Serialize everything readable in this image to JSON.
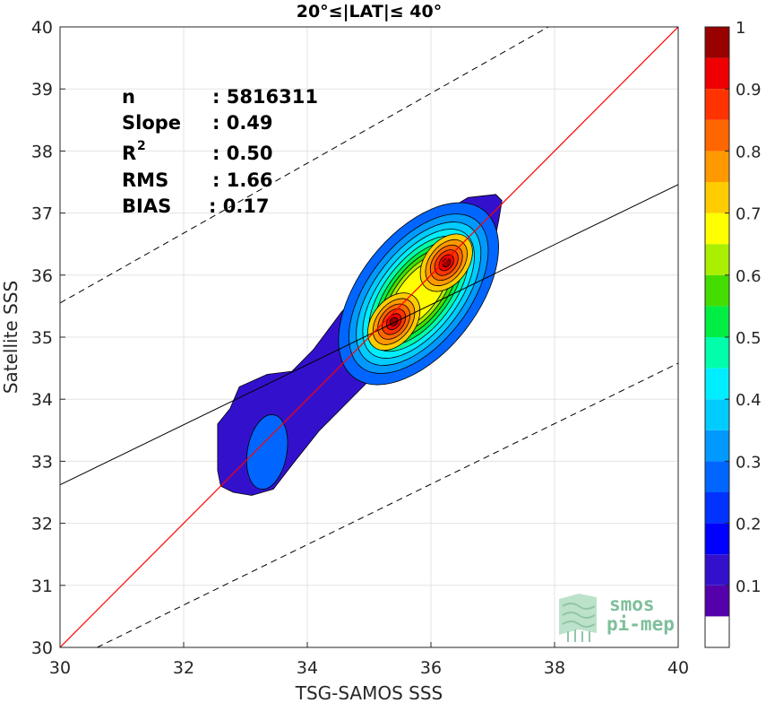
{
  "chart_data": {
    "type": "heatmap",
    "subtype": "density-contour",
    "title": "20°≤|LAT|≤ 40°",
    "xlabel": "TSG-SAMOS SSS",
    "ylabel": "Satellite SSS",
    "xlim": [
      30,
      40
    ],
    "ylim": [
      30,
      40
    ],
    "xticks": [
      "30",
      "32",
      "34",
      "36",
      "38",
      "40"
    ],
    "yticks": [
      "30",
      "31",
      "32",
      "33",
      "34",
      "35",
      "36",
      "37",
      "38",
      "39",
      "40"
    ],
    "grid": true,
    "stats": [
      {
        "label": "n",
        "value": ": 5816311"
      },
      {
        "label": "Slope",
        "value": ": 0.49"
      },
      {
        "label": "R",
        "sup": "2",
        "value": ": 0.50"
      },
      {
        "label": "RMS",
        "value": ": 1.66"
      },
      {
        "label": "BIAS",
        "value": ": 0.17"
      }
    ],
    "one_to_one_line": {
      "x": [
        30,
        40
      ],
      "y": [
        30,
        40
      ],
      "color": "#ff0000"
    },
    "regression_line": {
      "x": [
        30,
        40
      ],
      "y": [
        32.62,
        37.46
      ],
      "color": "#000000"
    },
    "confidence_lines": [
      {
        "x": [
          30,
          37.9
        ],
        "y": [
          35.55,
          40
        ],
        "style": "dashed"
      },
      {
        "x": [
          30.6,
          40
        ],
        "y": [
          30,
          34.58
        ],
        "style": "dashed"
      }
    ],
    "density_peaks": [
      {
        "x": 35.4,
        "y": 35.25,
        "level": 0.95
      },
      {
        "x": 36.25,
        "y": 36.2,
        "level": 0.95
      },
      {
        "x": 33.35,
        "y": 33.1,
        "level": 0.25
      }
    ],
    "colorbar": {
      "ticks": [
        "0.1",
        "0.2",
        "0.3",
        "0.4",
        "0.5",
        "0.6",
        "0.7",
        "0.8",
        "0.9",
        "1"
      ],
      "min": 0,
      "max": 1,
      "levels": 19,
      "colors": [
        "#ffffff",
        "#5500aa",
        "#3311cc",
        "#0000ff",
        "#0033ff",
        "#0066ff",
        "#0099ff",
        "#00ccff",
        "#00eeff",
        "#00ffaa",
        "#00ee44",
        "#44dd00",
        "#aaee00",
        "#ffff00",
        "#ffcc00",
        "#ff9900",
        "#ff6600",
        "#ff3300",
        "#ee0000",
        "#990000"
      ]
    }
  },
  "logo": {
    "line1": "smos",
    "line2": "pi-mep"
  }
}
